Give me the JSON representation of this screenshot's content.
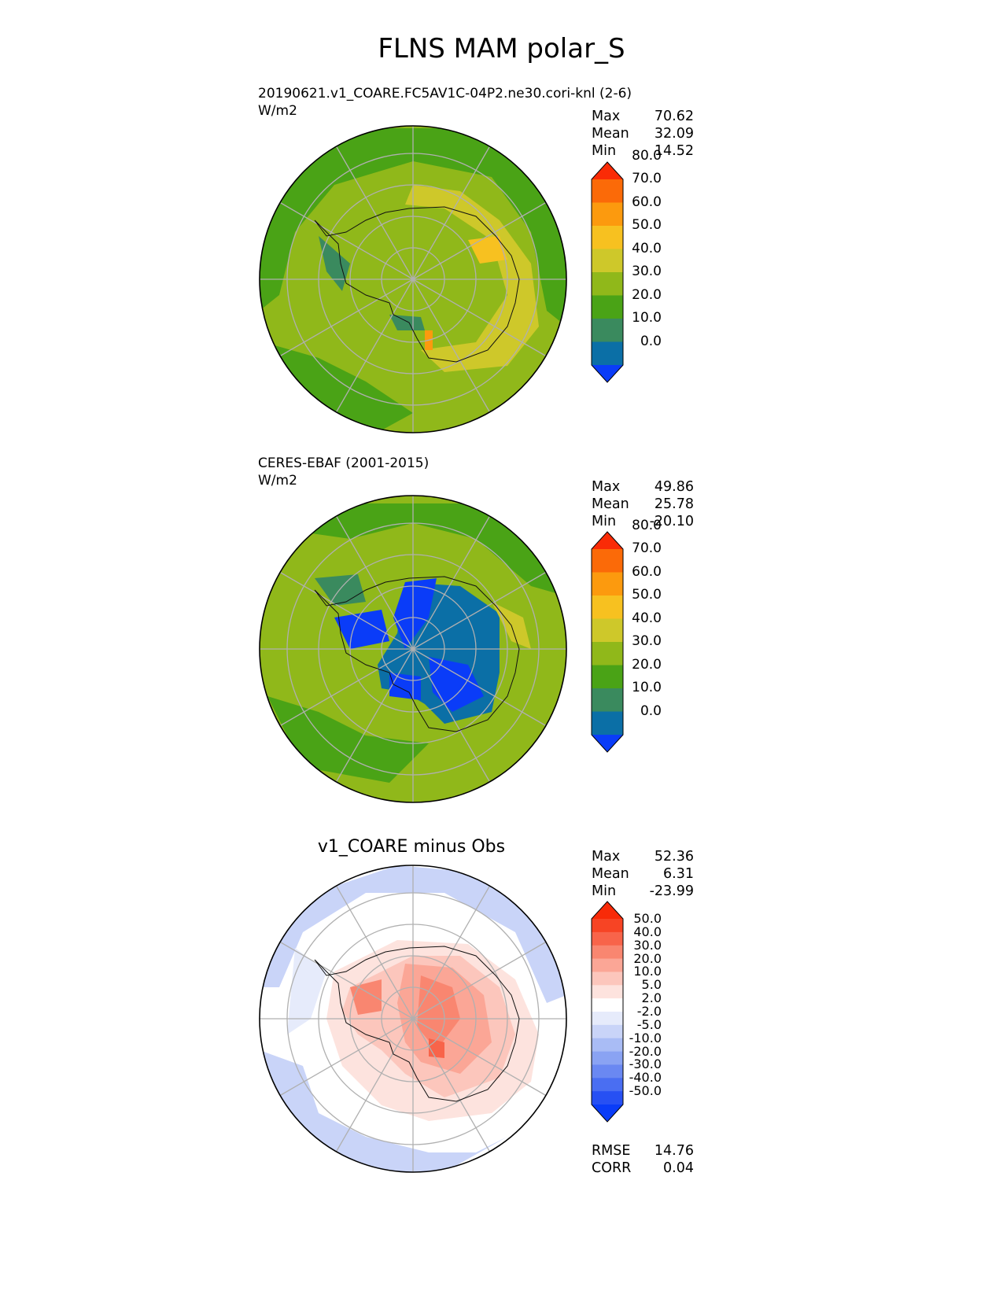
{
  "figure": {
    "title": "FLNS MAM polar_S"
  },
  "panels": [
    {
      "id": "test",
      "title_line1": "20190621.v1_COARE.FC5AV1C-04P2.ne30.cori-knl (2-6)",
      "units": "W/m2",
      "center_title": "",
      "stats": [
        {
          "label": "Max",
          "value": "70.62"
        },
        {
          "label": "Mean",
          "value": "32.09"
        },
        {
          "label": "Min",
          "value": "14.52"
        }
      ],
      "colorbar": {
        "colors": [
          "#0a3cf8",
          "#0b6fa6",
          "#3a8a5e",
          "#4aa316",
          "#90b81a",
          "#cec82a",
          "#f7c120",
          "#fc9a0e",
          "#fb6a08",
          "#fa2b06"
        ],
        "labels": [
          "0.0",
          "10.0",
          "20.0",
          "30.0",
          "40.0",
          "50.0",
          "60.0",
          "70.0",
          "80.0"
        ]
      }
    },
    {
      "id": "ref",
      "title_line1": "CERES-EBAF (2001-2015)",
      "units": "W/m2",
      "center_title": "",
      "stats": [
        {
          "label": "Max",
          "value": "49.86"
        },
        {
          "label": "Mean",
          "value": "25.78"
        },
        {
          "label": "Min",
          "value": "-20.10"
        }
      ],
      "colorbar": {
        "colors": [
          "#0a3cf8",
          "#0b6fa6",
          "#3a8a5e",
          "#4aa316",
          "#90b81a",
          "#cec82a",
          "#f7c120",
          "#fc9a0e",
          "#fb6a08",
          "#fa2b06"
        ],
        "labels": [
          "0.0",
          "10.0",
          "20.0",
          "30.0",
          "40.0",
          "50.0",
          "60.0",
          "70.0",
          "80.0"
        ]
      }
    },
    {
      "id": "diff",
      "title_line1": "",
      "units": "",
      "center_title": "v1_COARE minus Obs",
      "stats": [
        {
          "label": "Max",
          "value": "52.36"
        },
        {
          "label": "Mean",
          "value": "6.31"
        },
        {
          "label": "Min",
          "value": "-23.99"
        }
      ],
      "extra_stats": [
        {
          "label": "RMSE",
          "value": "14.76"
        },
        {
          "label": "CORR",
          "value": "0.04"
        }
      ],
      "colorbar": {
        "colors": [
          "#0a3cf8",
          "#2750f3",
          "#4a6ef2",
          "#6a88f2",
          "#8aa3f3",
          "#a9bcf5",
          "#c9d4f8",
          "#e6ebfb",
          "#ffffff",
          "#fde3de",
          "#fcc6bc",
          "#fba696",
          "#f98670",
          "#f8644a",
          "#f74424",
          "#f82a08"
        ],
        "labels": [
          "-50.0",
          "-40.0",
          "-30.0",
          "-20.0",
          "-10.0",
          "-5.0",
          "-2.0",
          "2.0",
          "5.0",
          "10.0",
          "20.0",
          "30.0",
          "40.0",
          "50.0"
        ]
      }
    }
  ],
  "chart_data": [
    {
      "type": "heatmap",
      "projection": "south-polar-stereographic",
      "title": "20190621.v1_COARE.FC5AV1C-04P2.ne30.cori-knl (2-6)",
      "units": "W/m2",
      "levels": [
        0,
        10,
        20,
        30,
        40,
        50,
        60,
        70,
        80
      ],
      "stats": {
        "max": 70.62,
        "mean": 32.09,
        "min": 14.52
      },
      "dominant_fill": "30-40",
      "grid": true
    },
    {
      "type": "heatmap",
      "projection": "south-polar-stereographic",
      "title": "CERES-EBAF (2001-2015)",
      "units": "W/m2",
      "levels": [
        0,
        10,
        20,
        30,
        40,
        50,
        60,
        70,
        80
      ],
      "stats": {
        "max": 49.86,
        "mean": 25.78,
        "min": -20.1
      },
      "dominant_fill": "30-40",
      "grid": true
    },
    {
      "type": "heatmap",
      "projection": "south-polar-stereographic",
      "title": "v1_COARE minus Obs",
      "levels": [
        -50,
        -40,
        -30,
        -20,
        -10,
        -5,
        -2,
        2,
        5,
        10,
        20,
        30,
        40,
        50
      ],
      "stats": {
        "max": 52.36,
        "mean": 6.31,
        "min": -23.99,
        "rmse": 14.76,
        "corr": 0.04
      },
      "dominant_fill": "-2-2",
      "grid": true
    }
  ]
}
